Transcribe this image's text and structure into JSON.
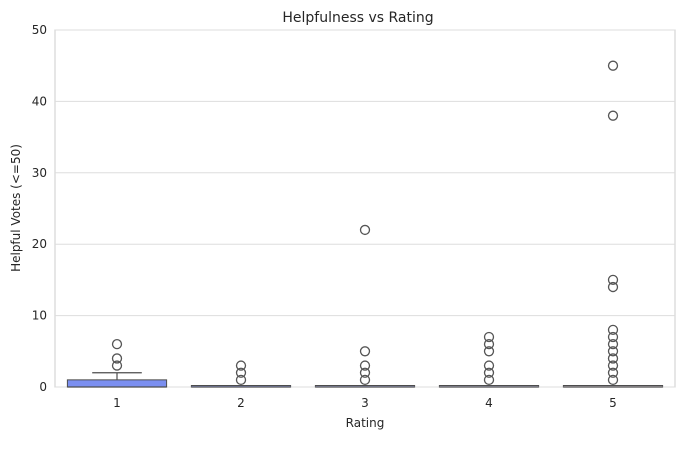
{
  "chart_data": {
    "type": "box",
    "title": "Helpfulness vs Rating",
    "xlabel": "Rating",
    "ylabel": "Helpful Votes (<=50)",
    "ylim": [
      0,
      50
    ],
    "yticks": [
      0,
      10,
      20,
      30,
      40,
      50
    ],
    "grid": true,
    "categories": [
      "1",
      "2",
      "3",
      "4",
      "5"
    ],
    "box_colors": [
      "#7b8ff0",
      "#9aa6ee",
      "#b3b8ea",
      "#c7c7e3",
      "#d8d2dc"
    ],
    "boxes": [
      {
        "category": "1",
        "min": 0,
        "q1": 0,
        "median": 0,
        "q3": 1,
        "max": 2,
        "outliers": [
          3,
          4,
          6
        ]
      },
      {
        "category": "2",
        "min": 0,
        "q1": 0,
        "median": 0,
        "q3": 0,
        "max": 0,
        "outliers": [
          1,
          2,
          3
        ]
      },
      {
        "category": "3",
        "min": 0,
        "q1": 0,
        "median": 0,
        "q3": 0,
        "max": 0,
        "outliers": [
          1,
          2,
          3,
          5,
          22
        ]
      },
      {
        "category": "4",
        "min": 0,
        "q1": 0,
        "median": 0,
        "q3": 0,
        "max": 0,
        "outliers": [
          1,
          2,
          3,
          5,
          6,
          7
        ]
      },
      {
        "category": "5",
        "min": 0,
        "q1": 0,
        "median": 0,
        "q3": 0,
        "max": 0,
        "outliers": [
          1,
          2,
          3,
          4,
          5,
          6,
          7,
          8,
          14,
          15,
          38,
          45
        ]
      }
    ]
  }
}
